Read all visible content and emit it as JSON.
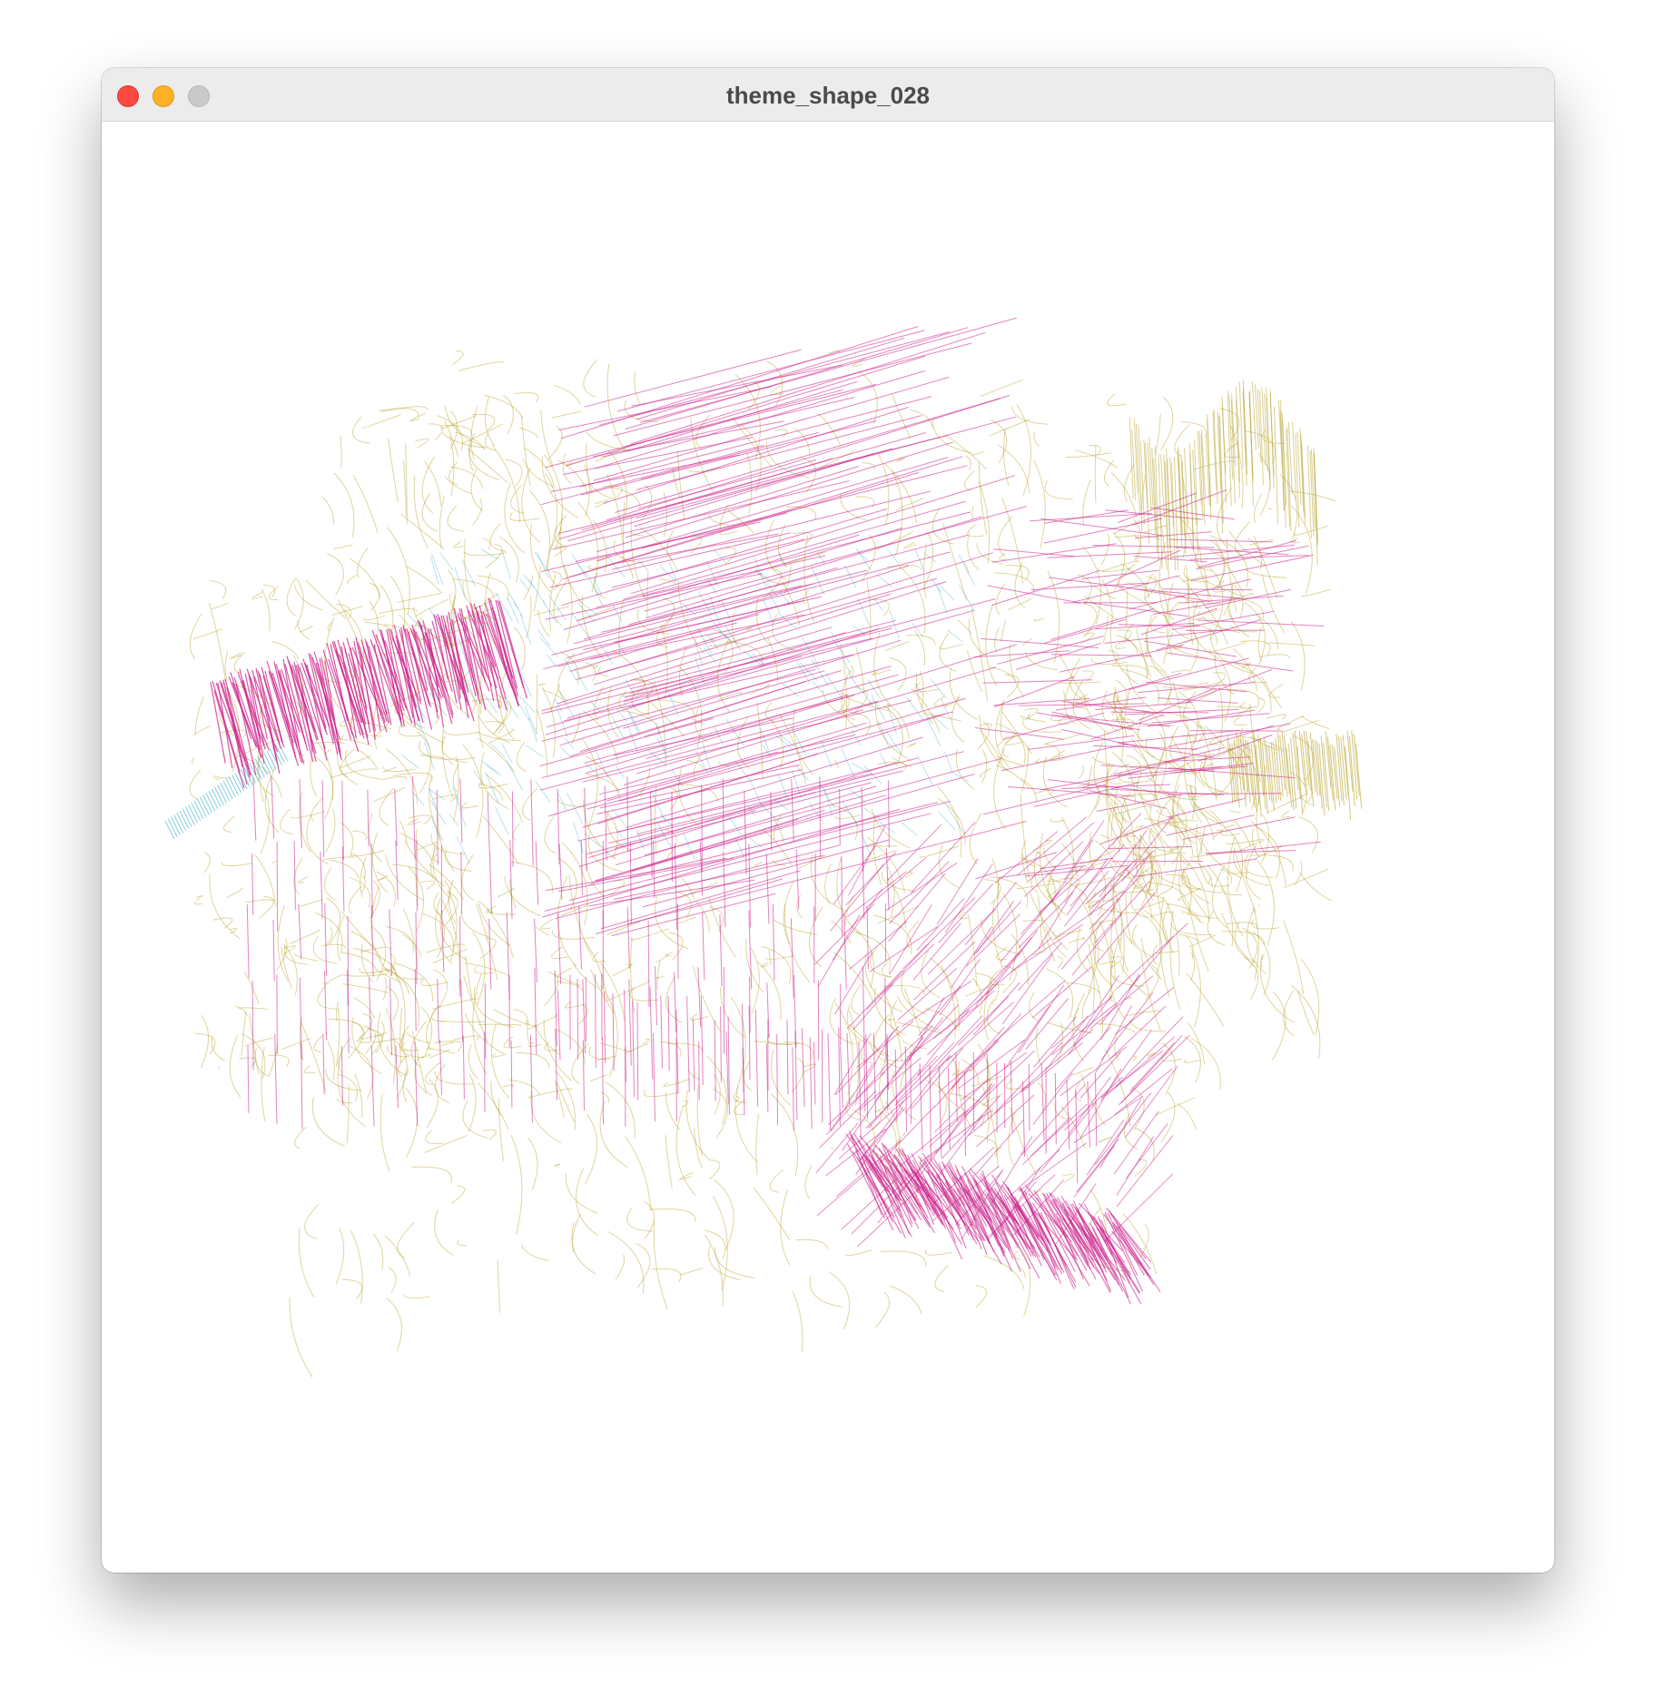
{
  "window": {
    "title": "theme_shape_028"
  },
  "controls": {
    "close": "close-icon",
    "minimize": "minimize-icon",
    "zoom": "zoom-icon"
  },
  "colors": {
    "titlebar": "#ececec",
    "canvas": "#ffffff",
    "olive": "#b8a12a",
    "magenta": "#cc1f8a",
    "cyan": "#3aa9c9"
  }
}
